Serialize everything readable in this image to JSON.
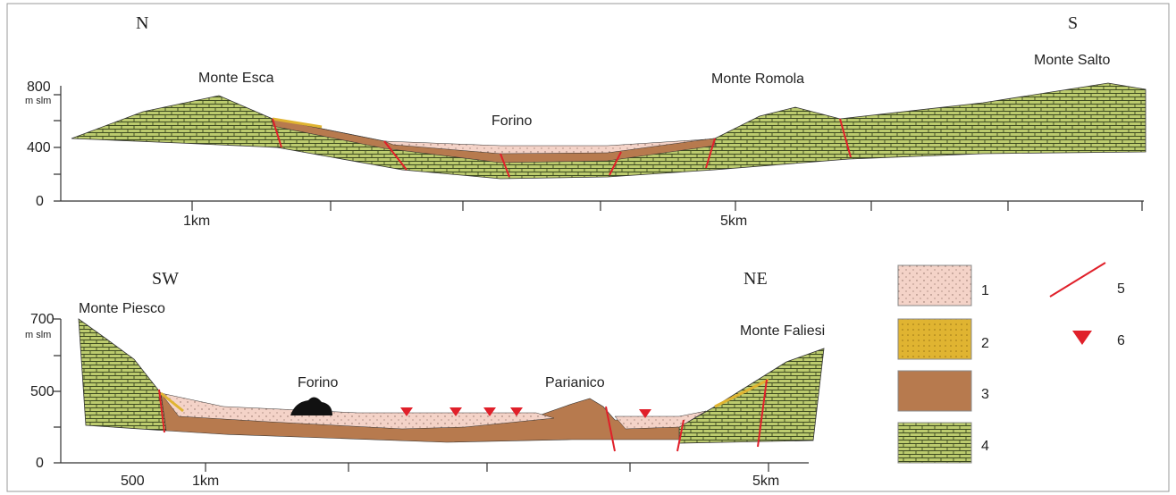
{
  "top_section": {
    "left_direction": "N",
    "right_direction": "S",
    "places": [
      "Monte Esca",
      "Forino",
      "Monte Romola",
      "Monte Salto"
    ],
    "y_axis": {
      "ticks": [
        "800",
        "400",
        "0"
      ],
      "unit": "m slm"
    },
    "x_axis": {
      "ticks": [
        "1km",
        "5km"
      ]
    }
  },
  "bottom_section": {
    "left_direction": "SW",
    "right_direction": "NE",
    "places": [
      "Monte Piesco",
      "Forino",
      "Parianico",
      "Monte Faliesi"
    ],
    "y_axis": {
      "ticks": [
        "700",
        "500",
        "0"
      ],
      "unit": "m slm"
    },
    "x_axis": {
      "ticks": [
        "500",
        "1km",
        "5km"
      ]
    }
  },
  "legend": [
    "1",
    "2",
    "3",
    "4",
    "5",
    "6"
  ]
}
